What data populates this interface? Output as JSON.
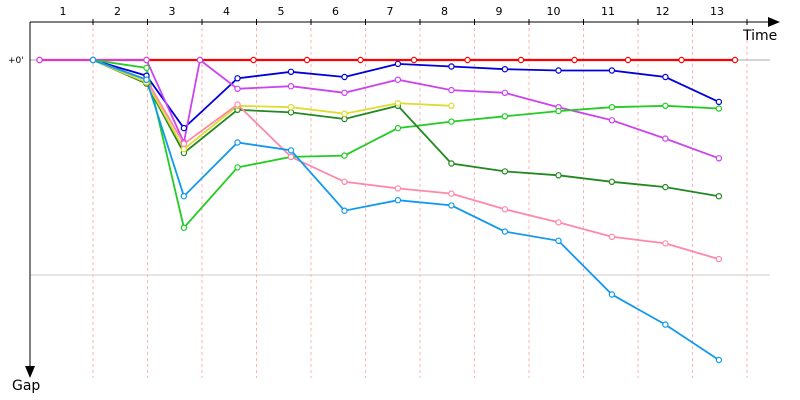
{
  "chart_data": {
    "type": "line",
    "title": "",
    "xlabel": "Time",
    "ylabel": "Gap",
    "y_zero_label": "+0'",
    "categories": [
      "1",
      "2",
      "3",
      "4",
      "5",
      "6",
      "7",
      "8",
      "9",
      "10",
      "11",
      "12",
      "13"
    ],
    "x_marks": [
      1,
      2,
      3,
      4,
      5,
      6,
      7,
      8,
      9,
      10,
      11,
      12,
      13,
      14
    ],
    "grid": {
      "horizontal": true,
      "vertical_dashed": true
    },
    "series": [
      {
        "color": "#ff0000",
        "values": [
          [
            1,
            0
          ],
          [
            2,
            0
          ],
          [
            3,
            0
          ],
          [
            4,
            0
          ],
          [
            5,
            0
          ],
          [
            6,
            0
          ],
          [
            7,
            0
          ],
          [
            8,
            0
          ],
          [
            9,
            0
          ],
          [
            10,
            0
          ],
          [
            11,
            0
          ],
          [
            12,
            0
          ],
          [
            13,
            0
          ],
          [
            14,
            0
          ]
        ]
      },
      {
        "color": "#0000dd",
        "values": [
          [
            2,
            0
          ],
          [
            3,
            -12
          ],
          [
            3.7,
            -52
          ],
          [
            4.7,
            -14
          ],
          [
            5.7,
            -9
          ],
          [
            6.7,
            -13
          ],
          [
            7.7,
            -3
          ],
          [
            8.7,
            -5
          ],
          [
            9.7,
            -7
          ],
          [
            10.7,
            -8
          ],
          [
            11.7,
            -8
          ],
          [
            12.7,
            -13
          ],
          [
            13.7,
            -32
          ]
        ]
      },
      {
        "color": "#cc44ee",
        "values": [
          [
            1,
            0
          ],
          [
            3,
            0
          ],
          [
            4,
            0
          ],
          [
            3.7,
            -63
          ],
          [
            4.7,
            -22
          ],
          [
            5.7,
            -20
          ],
          [
            6.7,
            -25
          ],
          [
            7.7,
            -15
          ],
          [
            8.7,
            -23
          ],
          [
            9.7,
            -25
          ],
          [
            10.7,
            -36
          ],
          [
            11.7,
            -46
          ],
          [
            12.7,
            -60
          ],
          [
            13.7,
            -75
          ]
        ]
      },
      {
        "color": "#22cc22",
        "values": [
          [
            2,
            0
          ],
          [
            3,
            -6
          ],
          [
            3.7,
            -128
          ],
          [
            4.7,
            -82
          ],
          [
            5.7,
            -74
          ],
          [
            6.7,
            -73
          ],
          [
            7.7,
            -52
          ],
          [
            8.7,
            -47
          ],
          [
            9.7,
            -43
          ],
          [
            10.7,
            -39
          ],
          [
            11.7,
            -36
          ],
          [
            12.7,
            -35
          ],
          [
            13.7,
            -37
          ]
        ]
      },
      {
        "color": "#228822",
        "values": [
          [
            2,
            0
          ],
          [
            3,
            -18
          ],
          [
            3.7,
            -71
          ],
          [
            4.7,
            -38
          ],
          [
            5.7,
            -40
          ],
          [
            6.7,
            -45
          ],
          [
            7.7,
            -35
          ],
          [
            8.7,
            -79
          ],
          [
            9.7,
            -85
          ],
          [
            10.7,
            -88
          ],
          [
            11.7,
            -93
          ],
          [
            12.7,
            -97
          ],
          [
            13.7,
            -104
          ]
        ]
      },
      {
        "color": "#dddd33",
        "values": [
          [
            2,
            0
          ],
          [
            3,
            -17
          ],
          [
            3.7,
            -68
          ],
          [
            4.7,
            -35
          ],
          [
            5.7,
            -36
          ],
          [
            6.7,
            -41
          ],
          [
            7.7,
            -33
          ],
          [
            8.7,
            -35
          ]
        ]
      },
      {
        "color": "#ff88aa",
        "values": [
          [
            2,
            0
          ],
          [
            3,
            -15
          ],
          [
            3.7,
            -64
          ],
          [
            4.7,
            -34
          ],
          [
            5.7,
            -74
          ],
          [
            6.7,
            -93
          ],
          [
            7.7,
            -98
          ],
          [
            8.7,
            -102
          ],
          [
            9.7,
            -114
          ],
          [
            10.7,
            -124
          ],
          [
            11.7,
            -135
          ],
          [
            12.7,
            -140
          ],
          [
            13.7,
            -152
          ]
        ]
      },
      {
        "color": "#1199ee",
        "values": [
          [
            2,
            0
          ],
          [
            3,
            -15
          ],
          [
            3.7,
            -104
          ],
          [
            4.7,
            -63
          ],
          [
            5.7,
            -69
          ],
          [
            6.7,
            -115
          ],
          [
            7.7,
            -107
          ],
          [
            8.7,
            -111
          ],
          [
            9.7,
            -131
          ],
          [
            10.7,
            -138
          ],
          [
            11.7,
            -179
          ],
          [
            12.7,
            -202
          ],
          [
            13.7,
            -229
          ]
        ]
      }
    ]
  }
}
